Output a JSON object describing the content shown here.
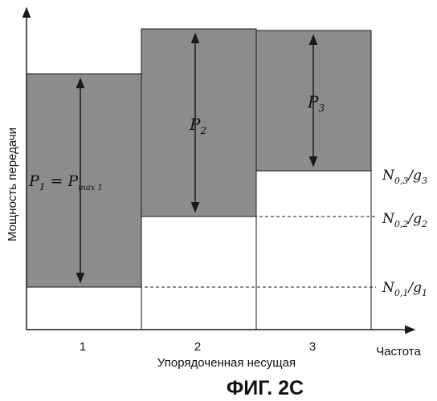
{
  "figure": {
    "caption": "ФИГ. 2С",
    "y_axis_label": "Мощность передачи",
    "x_axis_label": "Упорядоченная несущая",
    "x_axis_end_label": "Частота",
    "carriers": [
      "1",
      "2",
      "3"
    ],
    "power_labels": {
      "p1": "P",
      "p1_sub": "1",
      "p1_eq": " = P",
      "p1_max_sub": "max 1",
      "p2": "P",
      "p2_sub": "2",
      "p3": "P",
      "p3_sub": "3"
    },
    "noise_levels": [
      {
        "n": "N",
        "sub": "0,3",
        "slash": "/g",
        "g_sub": "3"
      },
      {
        "n": "N",
        "sub": "0,2",
        "slash": "/g",
        "g_sub": "2"
      },
      {
        "n": "N",
        "sub": "0,1",
        "slash": "/g",
        "g_sub": "1"
      }
    ],
    "colors": {
      "fill_dark": "#8c8c8c",
      "fill_light": "#ffffff",
      "line": "#1a1a1a"
    }
  }
}
